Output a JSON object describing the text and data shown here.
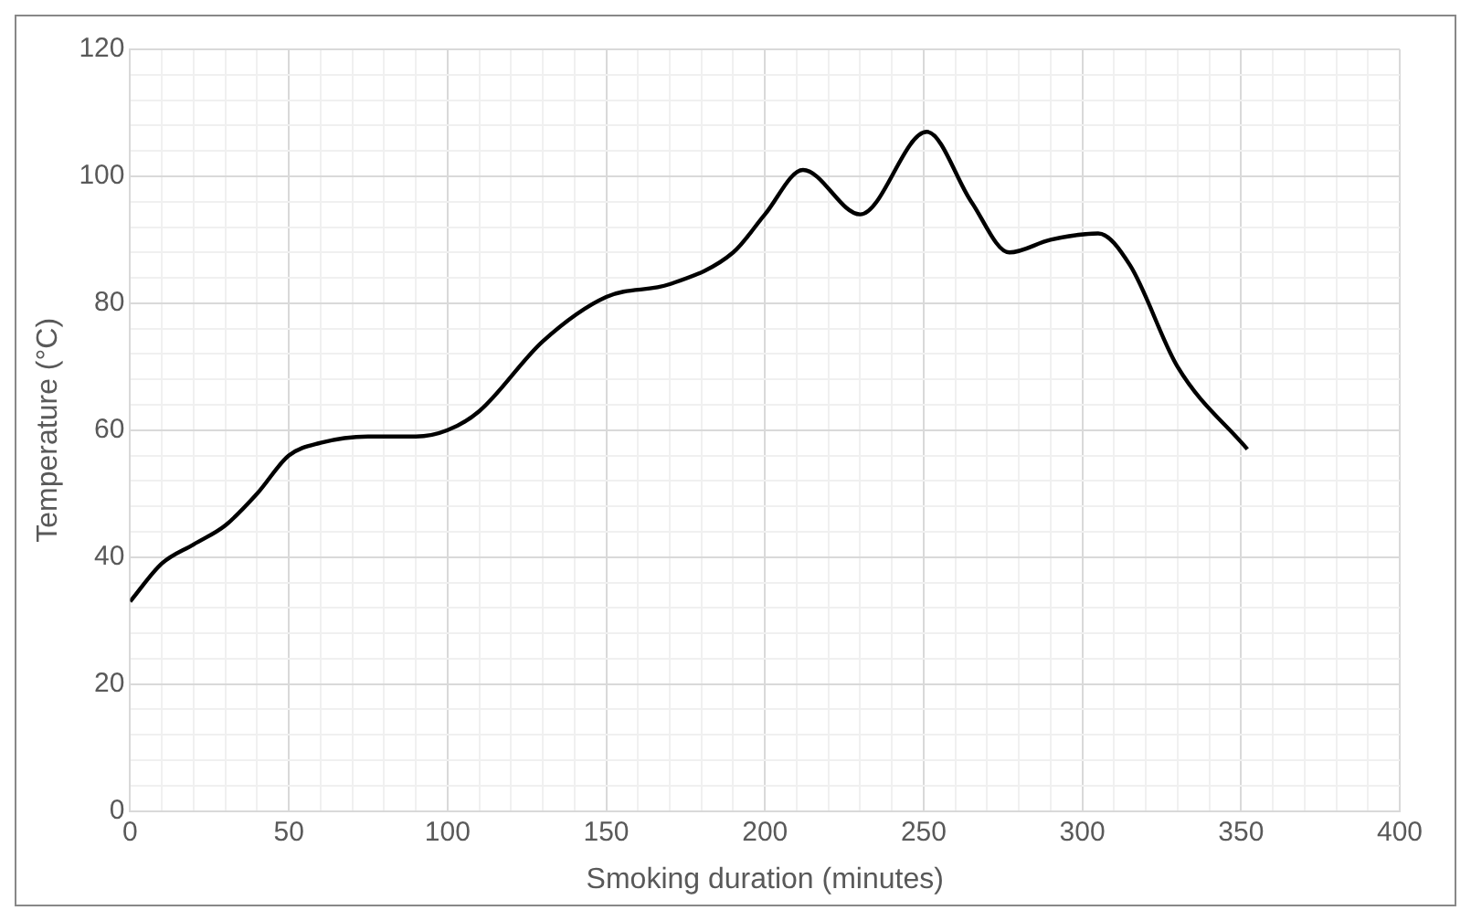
{
  "chart_data": {
    "type": "line",
    "xlabel": "Smoking duration (minutes)",
    "ylabel": "Temperature (°C)",
    "xlim": [
      0,
      400
    ],
    "ylim": [
      0,
      120
    ],
    "xticks": [
      0,
      {
        "value": 10,
        "label": null
      },
      {
        "value": 20,
        "label": null
      },
      {
        "value": 30,
        "label": null
      },
      {
        "value": 40,
        "label": null
      },
      50,
      {
        "value": 60,
        "label": null
      },
      {
        "value": 70,
        "label": null
      },
      {
        "value": 80,
        "label": null
      },
      {
        "value": 90,
        "label": null
      },
      100,
      {
        "value": 110,
        "label": null
      },
      {
        "value": 120,
        "label": null
      },
      {
        "value": 130,
        "label": null
      },
      {
        "value": 140,
        "label": null
      },
      150,
      {
        "value": 160,
        "label": null
      },
      {
        "value": 170,
        "label": null
      },
      {
        "value": 180,
        "label": null
      },
      {
        "value": 190,
        "label": null
      },
      200,
      {
        "value": 210,
        "label": null
      },
      {
        "value": 220,
        "label": null
      },
      {
        "value": 230,
        "label": null
      },
      {
        "value": 240,
        "label": null
      },
      250,
      {
        "value": 260,
        "label": null
      },
      {
        "value": 270,
        "label": null
      },
      {
        "value": 280,
        "label": null
      },
      {
        "value": 290,
        "label": null
      },
      300,
      {
        "value": 310,
        "label": null
      },
      {
        "value": 320,
        "label": null
      },
      {
        "value": 330,
        "label": null
      },
      {
        "value": 340,
        "label": null
      },
      350,
      {
        "value": 360,
        "label": null
      },
      {
        "value": 370,
        "label": null
      },
      {
        "value": 380,
        "label": null
      },
      {
        "value": 390,
        "label": null
      },
      400
    ],
    "yticks": [
      0,
      {
        "value": 4,
        "label": null
      },
      {
        "value": 8,
        "label": null
      },
      {
        "value": 12,
        "label": null
      },
      {
        "value": 16,
        "label": null
      },
      20,
      {
        "value": 24,
        "label": null
      },
      {
        "value": 28,
        "label": null
      },
      {
        "value": 32,
        "label": null
      },
      {
        "value": 36,
        "label": null
      },
      40,
      {
        "value": 44,
        "label": null
      },
      {
        "value": 48,
        "label": null
      },
      {
        "value": 52,
        "label": null
      },
      {
        "value": 56,
        "label": null
      },
      60,
      {
        "value": 64,
        "label": null
      },
      {
        "value": 68,
        "label": null
      },
      {
        "value": 72,
        "label": null
      },
      {
        "value": 76,
        "label": null
      },
      80,
      {
        "value": 84,
        "label": null
      },
      {
        "value": 88,
        "label": null
      },
      {
        "value": 92,
        "label": null
      },
      {
        "value": 96,
        "label": null
      },
      100,
      {
        "value": 104,
        "label": null
      },
      {
        "value": 108,
        "label": null
      },
      {
        "value": 112,
        "label": null
      },
      {
        "value": 116,
        "label": null
      },
      120
    ],
    "grid": true,
    "legend": false,
    "marker": "none",
    "line_style": "solid",
    "series": [
      {
        "color": "#000000",
        "x": [
          0,
          10,
          20,
          30,
          40,
          50,
          60,
          75,
          90,
          100,
          110,
          130,
          150,
          170,
          190,
          200,
          212,
          230,
          251,
          265,
          277,
          290,
          305,
          315,
          330,
          352
        ],
        "values": [
          33,
          39,
          42,
          45,
          50,
          56,
          58,
          59,
          59,
          60,
          63,
          74,
          81,
          83,
          88,
          94,
          101,
          94,
          107,
          96,
          88,
          90,
          91,
          86,
          70,
          57
        ]
      }
    ]
  }
}
